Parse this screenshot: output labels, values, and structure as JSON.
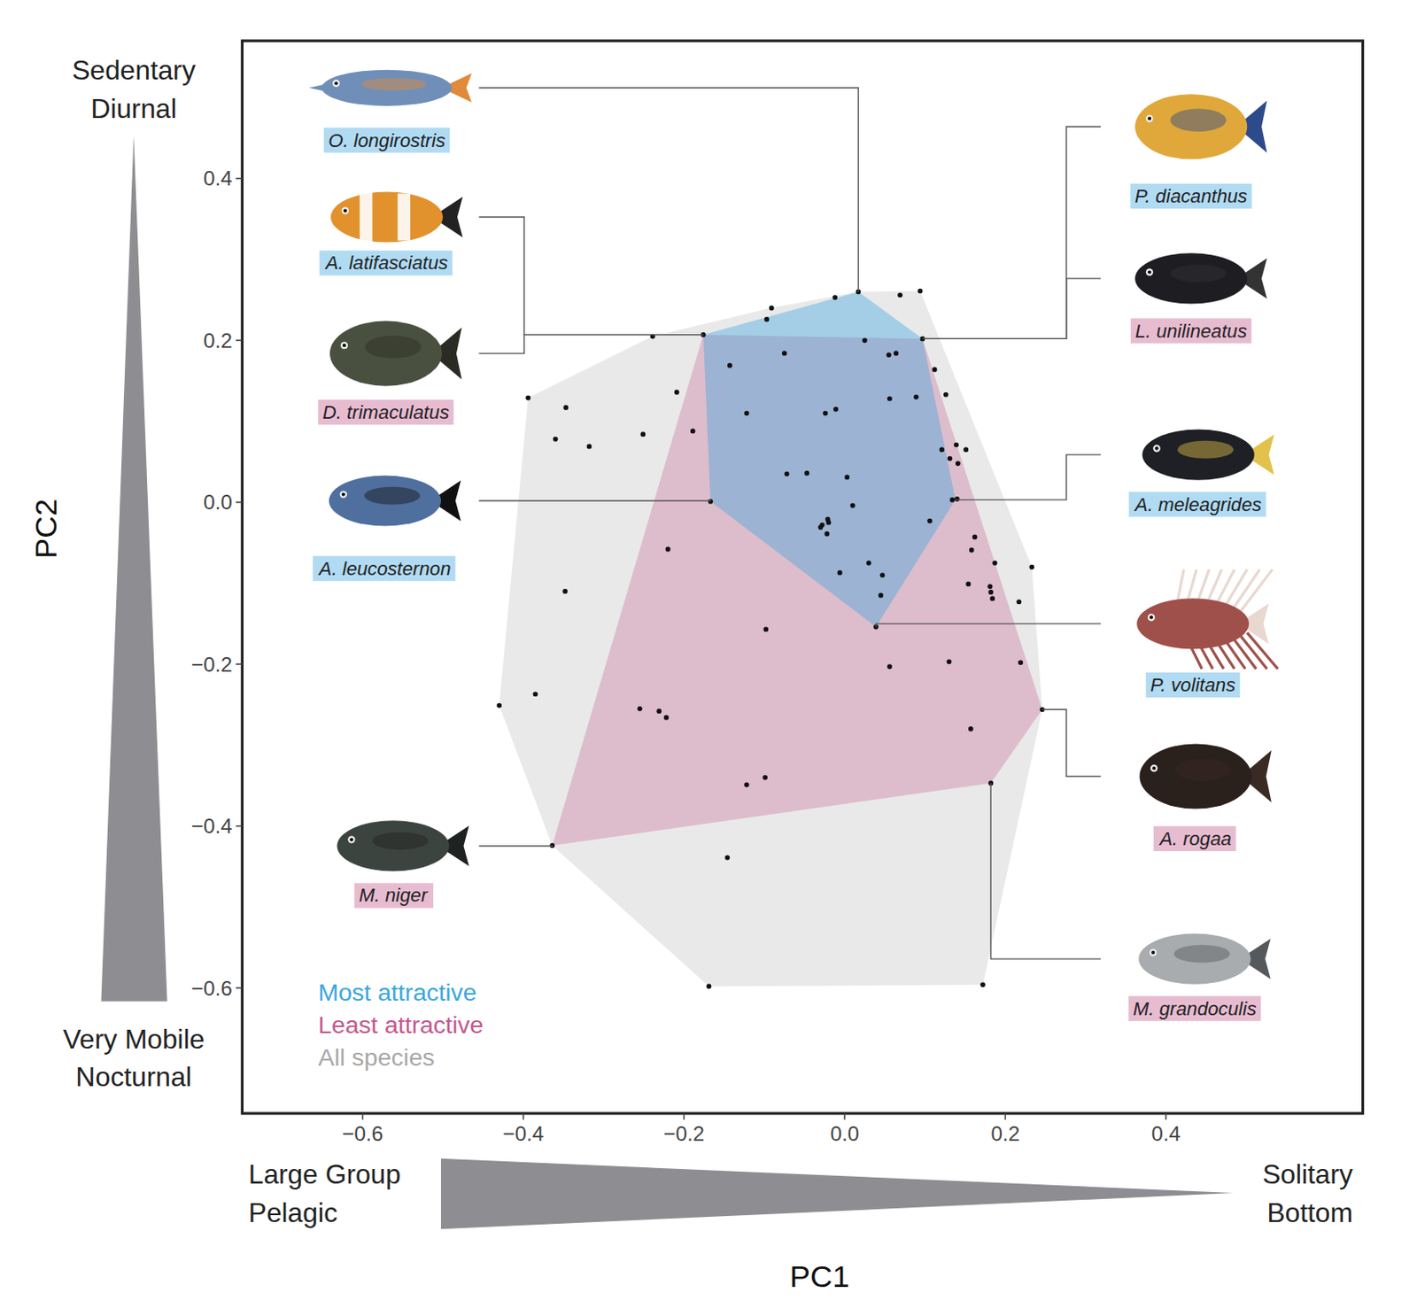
{
  "chart_data": {
    "type": "scatter",
    "x_label": "PC1",
    "y_label": "PC2",
    "xlim": [
      -0.75,
      0.645
    ],
    "ylim": [
      -0.755,
      0.57
    ],
    "xticks": [
      {
        "value": -0.6,
        "label": "−0.6"
      },
      {
        "value": -0.4,
        "label": "−0.4"
      },
      {
        "value": -0.2,
        "label": "−0.2"
      },
      {
        "value": 0,
        "label": "0.0"
      },
      0.2,
      0.4
    ],
    "yticks": [
      {
        "value": -0.6,
        "label": "−0.6"
      },
      {
        "value": -0.4,
        "label": "−0.4"
      },
      {
        "value": -0.2,
        "label": "−0.2"
      },
      {
        "value": 0,
        "label": "0.0"
      },
      0.2,
      0.4
    ],
    "annotations": {
      "y_high": "Sedentary\nDiurnal",
      "y_low": "Very Mobile\nNocturnal",
      "x_low": "Large Group\nPelagic",
      "x_high": "Solitary\nBottom"
    },
    "legend": "lower left",
    "series": [
      {
        "name": "Most attractive",
        "type": "hull",
        "color": "#3ba6e0",
        "labels": [
          "O. longirostris",
          "A. latifasciatus",
          "P. diacanthus",
          "A. meleagrides",
          "P. volitans",
          "A. leucosternon"
        ],
        "x": [
          0.017,
          -0.176,
          0.097,
          0.138,
          0.039,
          -0.167
        ],
        "y": [
          0.26,
          0.207,
          0.202,
          0.003,
          -0.154,
          0.001
        ]
      },
      {
        "name": "Least attractive",
        "type": "hull",
        "color": "#c4588c",
        "labels": [
          "D. trimaculatus",
          "L. unilineatus",
          "A. rogaa",
          "M. grandoculis",
          "M. niger"
        ],
        "x": [
          -0.176,
          0.097,
          0.246,
          0.182,
          -0.364
        ],
        "y": [
          0.207,
          0.202,
          -0.256,
          -0.347,
          -0.424
        ]
      },
      {
        "name": "All species",
        "type": "scatter",
        "color": "#a8a8a8",
        "marker": "circle",
        "x": [
          0.017,
          0.094,
          0.069,
          -0.012,
          -0.091,
          -0.097,
          -0.239,
          -0.176,
          0.097,
          0.025,
          0.055,
          0.064,
          -0.075,
          -0.143,
          0.112,
          0.089,
          0.126,
          0.056,
          -0.394,
          -0.209,
          -0.347,
          -0.024,
          -0.011,
          -0.122,
          -0.36,
          -0.318,
          -0.251,
          -0.189,
          0.139,
          0.151,
          0.121,
          0.141,
          0.131,
          -0.072,
          -0.047,
          0.003,
          -0.167,
          0.134,
          0.14,
          0.01,
          0.106,
          -0.021,
          -0.028,
          -0.02,
          -0.03,
          -0.022,
          0.162,
          0.158,
          -0.22,
          0.187,
          0.233,
          0.03,
          -0.006,
          0.047,
          0.154,
          0.181,
          0.182,
          0.184,
          0.217,
          -0.348,
          0.045,
          0.039,
          -0.098,
          0.056,
          0.13,
          0.219,
          -0.385,
          -0.43,
          -0.255,
          -0.231,
          -0.222,
          0.246,
          0.157,
          -0.099,
          -0.122,
          0.182,
          -0.364,
          -0.146,
          -0.169,
          0.172
        ],
        "y": [
          0.26,
          0.261,
          0.256,
          0.253,
          0.24,
          0.226,
          0.205,
          0.207,
          0.202,
          0.2,
          0.182,
          0.184,
          0.184,
          0.169,
          0.164,
          0.13,
          0.133,
          0.128,
          0.129,
          0.136,
          0.117,
          0.11,
          0.115,
          0.11,
          0.078,
          0.069,
          0.084,
          0.088,
          0.071,
          0.065,
          0.065,
          0.048,
          0.054,
          0.035,
          0.036,
          0.031,
          0.001,
          0.003,
          0.004,
          -0.004,
          -0.023,
          -0.021,
          -0.028,
          -0.025,
          -0.031,
          -0.039,
          -0.043,
          -0.059,
          -0.058,
          -0.075,
          -0.08,
          -0.075,
          -0.087,
          -0.09,
          -0.101,
          -0.104,
          -0.111,
          -0.119,
          -0.123,
          -0.11,
          -0.115,
          -0.154,
          -0.157,
          -0.203,
          -0.197,
          -0.198,
          -0.237,
          -0.251,
          -0.255,
          -0.258,
          -0.266,
          -0.256,
          -0.28,
          -0.34,
          -0.349,
          -0.347,
          -0.424,
          -0.439,
          -0.598,
          -0.596
        ]
      }
    ]
  }
}
